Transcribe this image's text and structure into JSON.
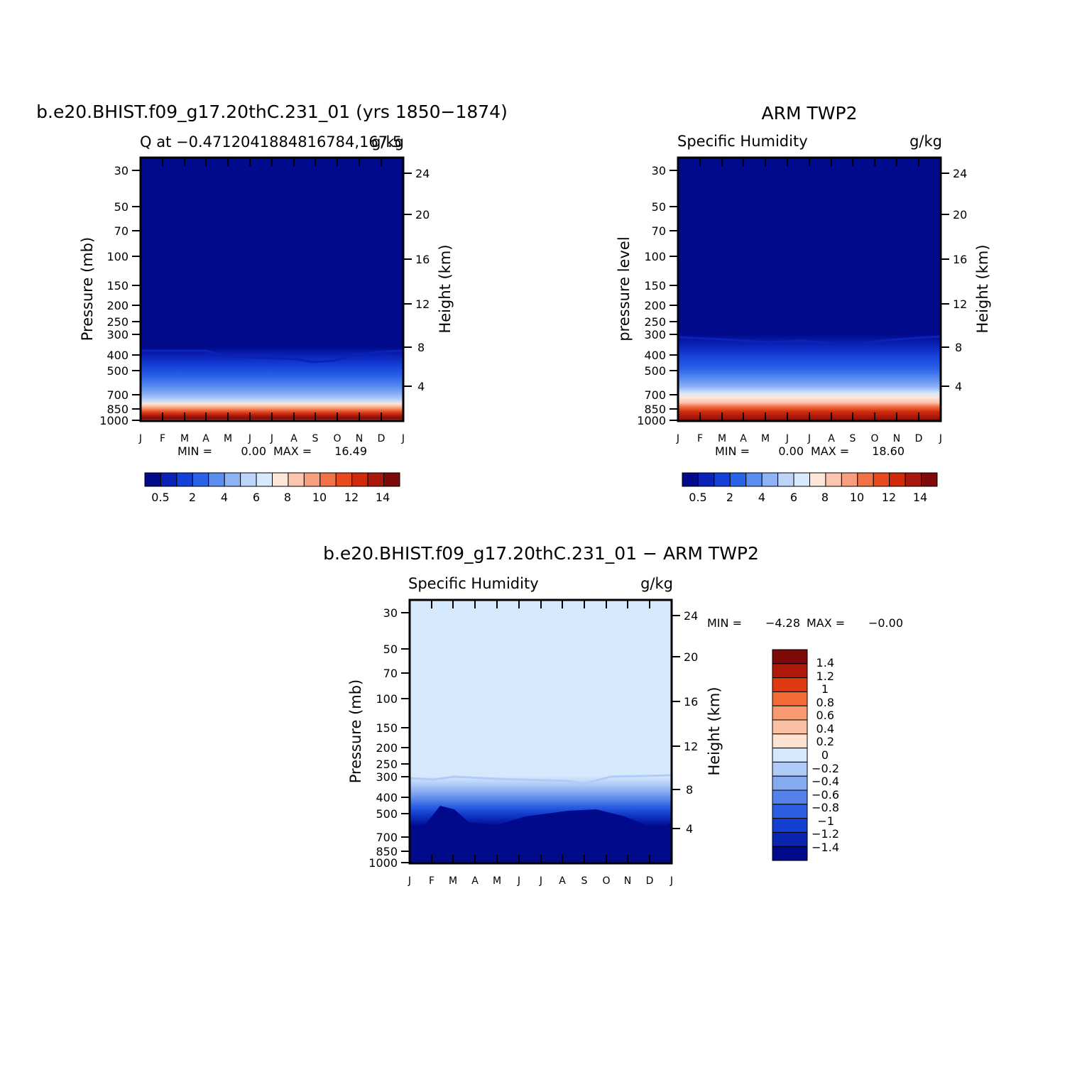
{
  "chart_data": [
    {
      "type": "heatmap",
      "title": "b.e20.BHIST.f09_g17.20thC.231_01 (yrs 1850-1874)",
      "subtitle_left": "Q at -0.4712041884816784,167.5",
      "subtitle_right": "g/kg",
      "ylabel_left": "Pressure (mb)",
      "ylabel_right": "Height (km)",
      "months": [
        "J",
        "F",
        "M",
        "A",
        "M",
        "J",
        "J",
        "A",
        "S",
        "O",
        "N",
        "D",
        "J"
      ],
      "pressure_ticks": [
        "30",
        "50",
        "70",
        "100",
        "150",
        "200",
        "250",
        "300",
        "400",
        "500",
        "700",
        "850",
        "1000"
      ],
      "height_ticks": [
        "24",
        "20",
        "16",
        "12",
        "8",
        "4"
      ],
      "stats": {
        "min_label": "MIN =",
        "min": "0.00",
        "max_label": "MAX =",
        "max": "16.49"
      },
      "colorbar": {
        "labels": [
          "0.5",
          "2",
          "4",
          "6",
          "8",
          "10",
          "12",
          "14"
        ],
        "colors": [
          "#000A8A",
          "#0A22B8",
          "#1440D8",
          "#2A62E8",
          "#5A8EF0",
          "#8EB2F6",
          "#BCD4FA",
          "#D9E9FC",
          "#FDE6D8",
          "#FBC5AE",
          "#F79F7C",
          "#F17246",
          "#E84A1C",
          "#D12A0A",
          "#A8180C",
          "#7E0A0A"
        ]
      },
      "contour_levels_g_per_kg": [
        0.5,
        1,
        2,
        3,
        4,
        5,
        6,
        7,
        8,
        9,
        10,
        11,
        12,
        13,
        14
      ],
      "profile_surface_to_top": "moist lower troposphere (up to ~16 g/kg near 1000 mb), decreasing to <0.5 g/kg above ~400 mb",
      "max": 16.49
    },
    {
      "type": "heatmap",
      "title": "ARM TWP2",
      "subtitle_left": "Specific Humidity",
      "subtitle_right": "g/kg",
      "ylabel_left": "pressure level",
      "ylabel_right": "Height (km)",
      "months": [
        "J",
        "F",
        "M",
        "A",
        "M",
        "J",
        "J",
        "A",
        "S",
        "O",
        "N",
        "D",
        "J"
      ],
      "pressure_ticks": [
        "30",
        "50",
        "70",
        "100",
        "150",
        "200",
        "250",
        "300",
        "400",
        "500",
        "700",
        "850",
        "1000"
      ],
      "height_ticks": [
        "24",
        "20",
        "16",
        "12",
        "8",
        "4"
      ],
      "stats": {
        "min_label": "MIN =",
        "min": "0.00",
        "max_label": "MAX =",
        "max": "18.60"
      },
      "colorbar": {
        "labels": [
          "0.5",
          "2",
          "4",
          "6",
          "8",
          "10",
          "12",
          "14"
        ],
        "colors": [
          "#000A8A",
          "#0A22B8",
          "#1440D8",
          "#2A62E8",
          "#5A8EF0",
          "#8EB2F6",
          "#BCD4FA",
          "#D9E9FC",
          "#FDE6D8",
          "#FBC5AE",
          "#F79F7C",
          "#F17246",
          "#E84A1C",
          "#D12A0A",
          "#A8180C",
          "#7E0A0A"
        ]
      },
      "max": 18.6
    },
    {
      "type": "heatmap",
      "title": "b.e20.BHIST.f09_g17.20thC.231_01 - ARM TWP2",
      "subtitle_left": "Specific Humidity",
      "subtitle_right": "g/kg",
      "ylabel_left": "Pressure (mb)",
      "ylabel_right": "Height (km)",
      "months": [
        "J",
        "F",
        "M",
        "A",
        "M",
        "J",
        "J",
        "A",
        "S",
        "O",
        "N",
        "D",
        "J"
      ],
      "pressure_ticks": [
        "30",
        "50",
        "70",
        "100",
        "150",
        "200",
        "250",
        "300",
        "400",
        "500",
        "700",
        "850",
        "1000"
      ],
      "height_ticks": [
        "24",
        "20",
        "16",
        "12",
        "8",
        "4"
      ],
      "stats": {
        "min_label": "MIN =",
        "min": "-4.28",
        "max_label": "MAX =",
        "max": "-0.00"
      },
      "colorbar": {
        "labels": [
          "1.4",
          "1.2",
          "1",
          "0.8",
          "0.6",
          "0.4",
          "0.2",
          "0",
          "-0.2",
          "-0.4",
          "-0.6",
          "-0.8",
          "-1",
          "-1.2",
          "-1.4"
        ],
        "colors": [
          "#7E0A0A",
          "#B01A0A",
          "#E03A10",
          "#F26A36",
          "#F79A72",
          "#FBC0A2",
          "#FDE2D2",
          "#D6E8FC",
          "#B0CBF8",
          "#86AAF2",
          "#5582EA",
          "#2C5EE2",
          "#1440D0",
          "#0A24B0",
          "#000A8A"
        ]
      },
      "min": -4.28,
      "max": -0.0
    }
  ]
}
